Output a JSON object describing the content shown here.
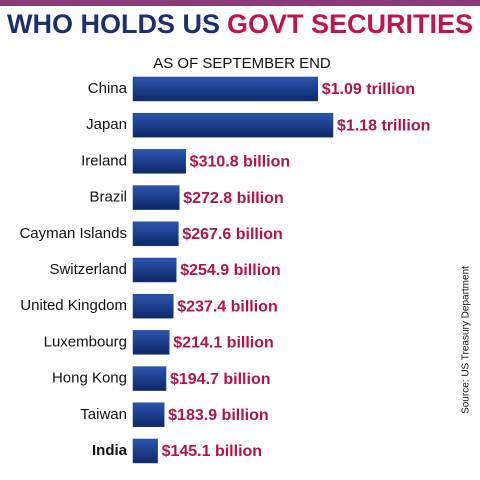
{
  "chart_data": {
    "type": "bar",
    "orientation": "horizontal",
    "title": [
      "WHO HOLDS US",
      "GOVT SECURITIES"
    ],
    "title_colors": [
      "#1c2f6e",
      "#c4124f"
    ],
    "subtitle": "AS OF SEPTEMBER END",
    "source": "Source: US Treasury Department",
    "categories": [
      "China",
      "Japan",
      "Ireland",
      "Brazil",
      "Cayman Islands",
      "Switzerland",
      "United Kingdom",
      "Luxembourg",
      "Hong Kong",
      "Taiwan",
      "India"
    ],
    "values": [
      1090,
      1180,
      310.8,
      272.8,
      267.6,
      254.9,
      237.4,
      214.1,
      194.7,
      183.9,
      145.1
    ],
    "value_labels": [
      "$1.09 trillion",
      "$1.18 trillion",
      "$310.8 billion",
      "$272.8 billion",
      "$267.6 billion",
      "$254.9 billion",
      "$237.4 billion",
      "$214.1 billion",
      "$194.7 billion",
      "$183.9 billion",
      "$145.1 billion"
    ],
    "highlight": "India",
    "color": "#1b3c8c",
    "label_color": "#b3124a"
  }
}
